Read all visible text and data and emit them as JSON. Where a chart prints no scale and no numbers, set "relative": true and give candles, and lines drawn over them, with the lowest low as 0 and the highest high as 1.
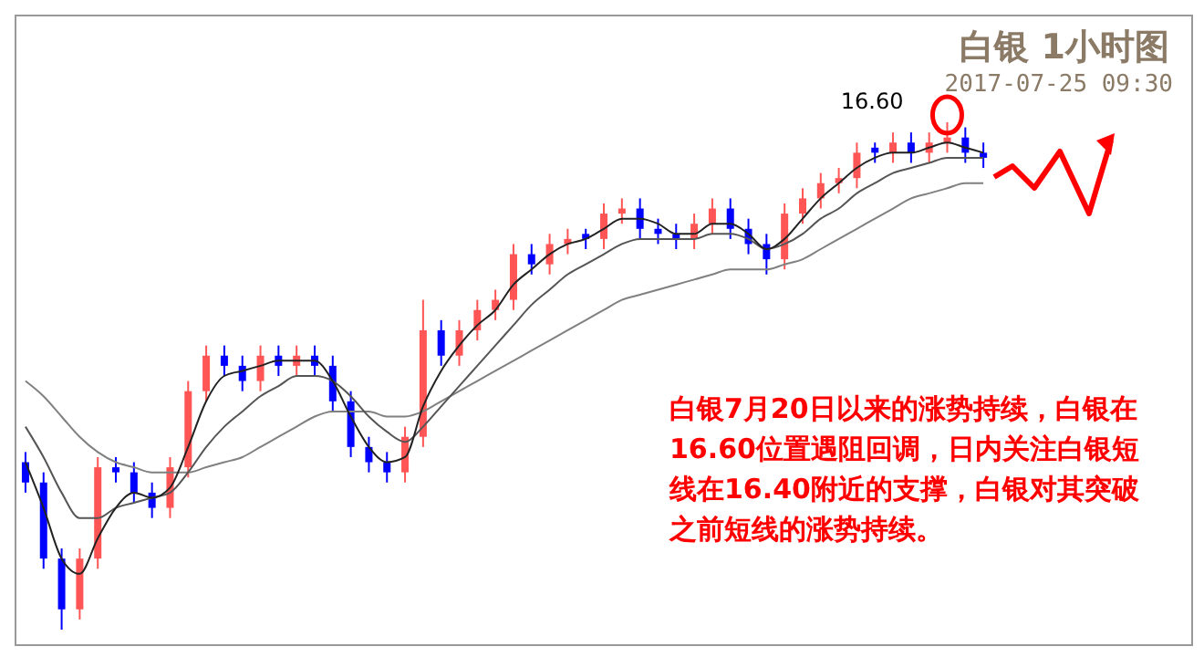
{
  "chart_data": {
    "type": "candlestick",
    "title": "白银 1小时图",
    "subtitle": "2017-07-25 09:30",
    "relative": true,
    "annotations": [
      "16.60",
      "白银7月20日以来的涨势持续，白银在16.60位置遇阻回调，日内关注白银短线在16.40附近的支撑，白银对其突破之前短线的涨势持续。"
    ],
    "categories": [
      null,
      null,
      null,
      null,
      null,
      null,
      null,
      null,
      null,
      null,
      null,
      null,
      null,
      null,
      null,
      null,
      null,
      null,
      null,
      null,
      null,
      null,
      null,
      null,
      null,
      null,
      null,
      null,
      null,
      null,
      null,
      null,
      null,
      null,
      null,
      null,
      null,
      null,
      null,
      null,
      null,
      null,
      null,
      null,
      null,
      null,
      null,
      null,
      null,
      null,
      null,
      null,
      null,
      null
    ],
    "ohlc": [
      [
        0.33,
        0.35,
        0.27,
        0.29
      ],
      [
        0.29,
        0.31,
        0.12,
        0.14
      ],
      [
        0.14,
        0.16,
        0.0,
        0.04
      ],
      [
        0.04,
        0.16,
        0.02,
        0.14
      ],
      [
        0.14,
        0.34,
        0.12,
        0.32
      ],
      [
        0.32,
        0.34,
        0.29,
        0.31
      ],
      [
        0.31,
        0.33,
        0.25,
        0.27
      ],
      [
        0.27,
        0.29,
        0.22,
        0.24
      ],
      [
        0.24,
        0.34,
        0.22,
        0.32
      ],
      [
        0.32,
        0.49,
        0.3,
        0.47
      ],
      [
        0.47,
        0.56,
        0.45,
        0.54
      ],
      [
        0.54,
        0.56,
        0.5,
        0.52
      ],
      [
        0.52,
        0.54,
        0.47,
        0.49
      ],
      [
        0.49,
        0.56,
        0.47,
        0.54
      ],
      [
        0.54,
        0.56,
        0.5,
        0.52
      ],
      [
        0.52,
        0.56,
        0.5,
        0.54
      ],
      [
        0.54,
        0.56,
        0.5,
        0.52
      ],
      [
        0.52,
        0.54,
        0.43,
        0.45
      ],
      [
        0.45,
        0.47,
        0.34,
        0.36
      ],
      [
        0.36,
        0.38,
        0.31,
        0.33
      ],
      [
        0.33,
        0.35,
        0.29,
        0.31
      ],
      [
        0.31,
        0.4,
        0.29,
        0.38
      ],
      [
        0.38,
        0.65,
        0.36,
        0.59
      ],
      [
        0.59,
        0.61,
        0.52,
        0.54
      ],
      [
        0.54,
        0.61,
        0.52,
        0.59
      ],
      [
        0.59,
        0.65,
        0.57,
        0.63
      ],
      [
        0.63,
        0.67,
        0.61,
        0.65
      ],
      [
        0.65,
        0.76,
        0.63,
        0.74
      ],
      [
        0.74,
        0.76,
        0.7,
        0.72
      ],
      [
        0.72,
        0.78,
        0.7,
        0.76
      ],
      [
        0.76,
        0.79,
        0.74,
        0.77
      ],
      [
        0.78,
        0.79,
        0.75,
        0.77
      ],
      [
        0.77,
        0.84,
        0.75,
        0.82
      ],
      [
        0.82,
        0.85,
        0.8,
        0.83
      ],
      [
        0.83,
        0.85,
        0.77,
        0.79
      ],
      [
        0.79,
        0.81,
        0.76,
        0.78
      ],
      [
        0.78,
        0.8,
        0.75,
        0.77
      ],
      [
        0.77,
        0.82,
        0.75,
        0.8
      ],
      [
        0.8,
        0.85,
        0.78,
        0.83
      ],
      [
        0.83,
        0.85,
        0.77,
        0.79
      ],
      [
        0.79,
        0.81,
        0.74,
        0.76
      ],
      [
        0.76,
        0.78,
        0.7,
        0.73
      ],
      [
        0.73,
        0.84,
        0.71,
        0.82
      ],
      [
        0.82,
        0.87,
        0.8,
        0.85
      ],
      [
        0.85,
        0.9,
        0.83,
        0.88
      ],
      [
        0.88,
        0.91,
        0.86,
        0.89
      ],
      [
        0.89,
        0.96,
        0.87,
        0.94
      ],
      [
        0.95,
        0.96,
        0.92,
        0.94
      ],
      [
        0.94,
        0.98,
        0.92,
        0.96
      ],
      [
        0.96,
        0.98,
        0.92,
        0.94
      ],
      [
        0.94,
        0.98,
        0.92,
        0.96
      ],
      [
        0.96,
        1.0,
        0.94,
        0.97
      ],
      [
        0.97,
        0.99,
        0.92,
        0.94
      ],
      [
        0.94,
        0.96,
        0.91,
        0.93
      ]
    ],
    "colors": [
      "#0000ff",
      "#0000ff",
      "#0000ff",
      "#ff5555",
      "#ff5555",
      "#0000ff",
      "#0000ff",
      "#0000ff",
      "#ff5555",
      "#ff5555",
      "#ff5555",
      "#0000ff",
      "#0000ff",
      "#ff5555",
      "#0000ff",
      "#ff5555",
      "#0000ff",
      "#0000ff",
      "#0000ff",
      "#0000ff",
      "#0000ff",
      "#ff5555",
      "#ff5555",
      "#0000ff",
      "#ff5555",
      "#ff5555",
      "#ff5555",
      "#ff5555",
      "#0000ff",
      "#ff5555",
      "#ff5555",
      "#0000ff",
      "#ff5555",
      "#ff5555",
      "#0000ff",
      "#0000ff",
      "#0000ff",
      "#ff5555",
      "#ff5555",
      "#0000ff",
      "#0000ff",
      "#0000ff",
      "#ff5555",
      "#ff5555",
      "#ff5555",
      "#ff5555",
      "#ff5555",
      "#0000ff",
      "#ff5555",
      "#0000ff",
      "#ff5555",
      "#ff5555",
      "#0000ff",
      "#0000ff"
    ],
    "series": [
      {
        "type": "line",
        "color": "#808080",
        "values": [
          0.49,
          0.46,
          0.42,
          0.38,
          0.35,
          0.33,
          0.32,
          0.31,
          0.31,
          0.31,
          0.32,
          0.33,
          0.34,
          0.36,
          0.38,
          0.4,
          0.42,
          0.43,
          0.43,
          0.43,
          0.42,
          0.42,
          0.43,
          0.45,
          0.47,
          0.49,
          0.51,
          0.53,
          0.55,
          0.57,
          0.59,
          0.61,
          0.63,
          0.65,
          0.66,
          0.67,
          0.68,
          0.69,
          0.7,
          0.71,
          0.71,
          0.71,
          0.72,
          0.73,
          0.75,
          0.77,
          0.79,
          0.81,
          0.83,
          0.85,
          0.86,
          0.87,
          0.88,
          0.88
        ]
      },
      {
        "type": "line",
        "color": "#555555",
        "values": [
          0.4,
          0.34,
          0.27,
          0.22,
          0.22,
          0.24,
          0.25,
          0.26,
          0.27,
          0.31,
          0.36,
          0.4,
          0.43,
          0.46,
          0.48,
          0.5,
          0.5,
          0.49,
          0.46,
          0.42,
          0.39,
          0.37,
          0.4,
          0.44,
          0.48,
          0.52,
          0.56,
          0.6,
          0.64,
          0.67,
          0.7,
          0.72,
          0.74,
          0.76,
          0.77,
          0.77,
          0.77,
          0.77,
          0.78,
          0.78,
          0.77,
          0.75,
          0.76,
          0.78,
          0.81,
          0.83,
          0.86,
          0.88,
          0.9,
          0.91,
          0.92,
          0.93,
          0.93,
          0.93
        ]
      },
      {
        "type": "line",
        "color": "#222222",
        "values": [
          0.33,
          0.24,
          0.14,
          0.11,
          0.18,
          0.24,
          0.27,
          0.26,
          0.28,
          0.36,
          0.45,
          0.5,
          0.51,
          0.52,
          0.53,
          0.53,
          0.53,
          0.49,
          0.42,
          0.36,
          0.33,
          0.34,
          0.44,
          0.51,
          0.56,
          0.6,
          0.63,
          0.68,
          0.71,
          0.74,
          0.76,
          0.77,
          0.79,
          0.81,
          0.81,
          0.8,
          0.78,
          0.78,
          0.8,
          0.8,
          0.78,
          0.75,
          0.77,
          0.81,
          0.85,
          0.88,
          0.91,
          0.93,
          0.94,
          0.94,
          0.95,
          0.96,
          0.95,
          0.94
        ]
      }
    ]
  }
}
